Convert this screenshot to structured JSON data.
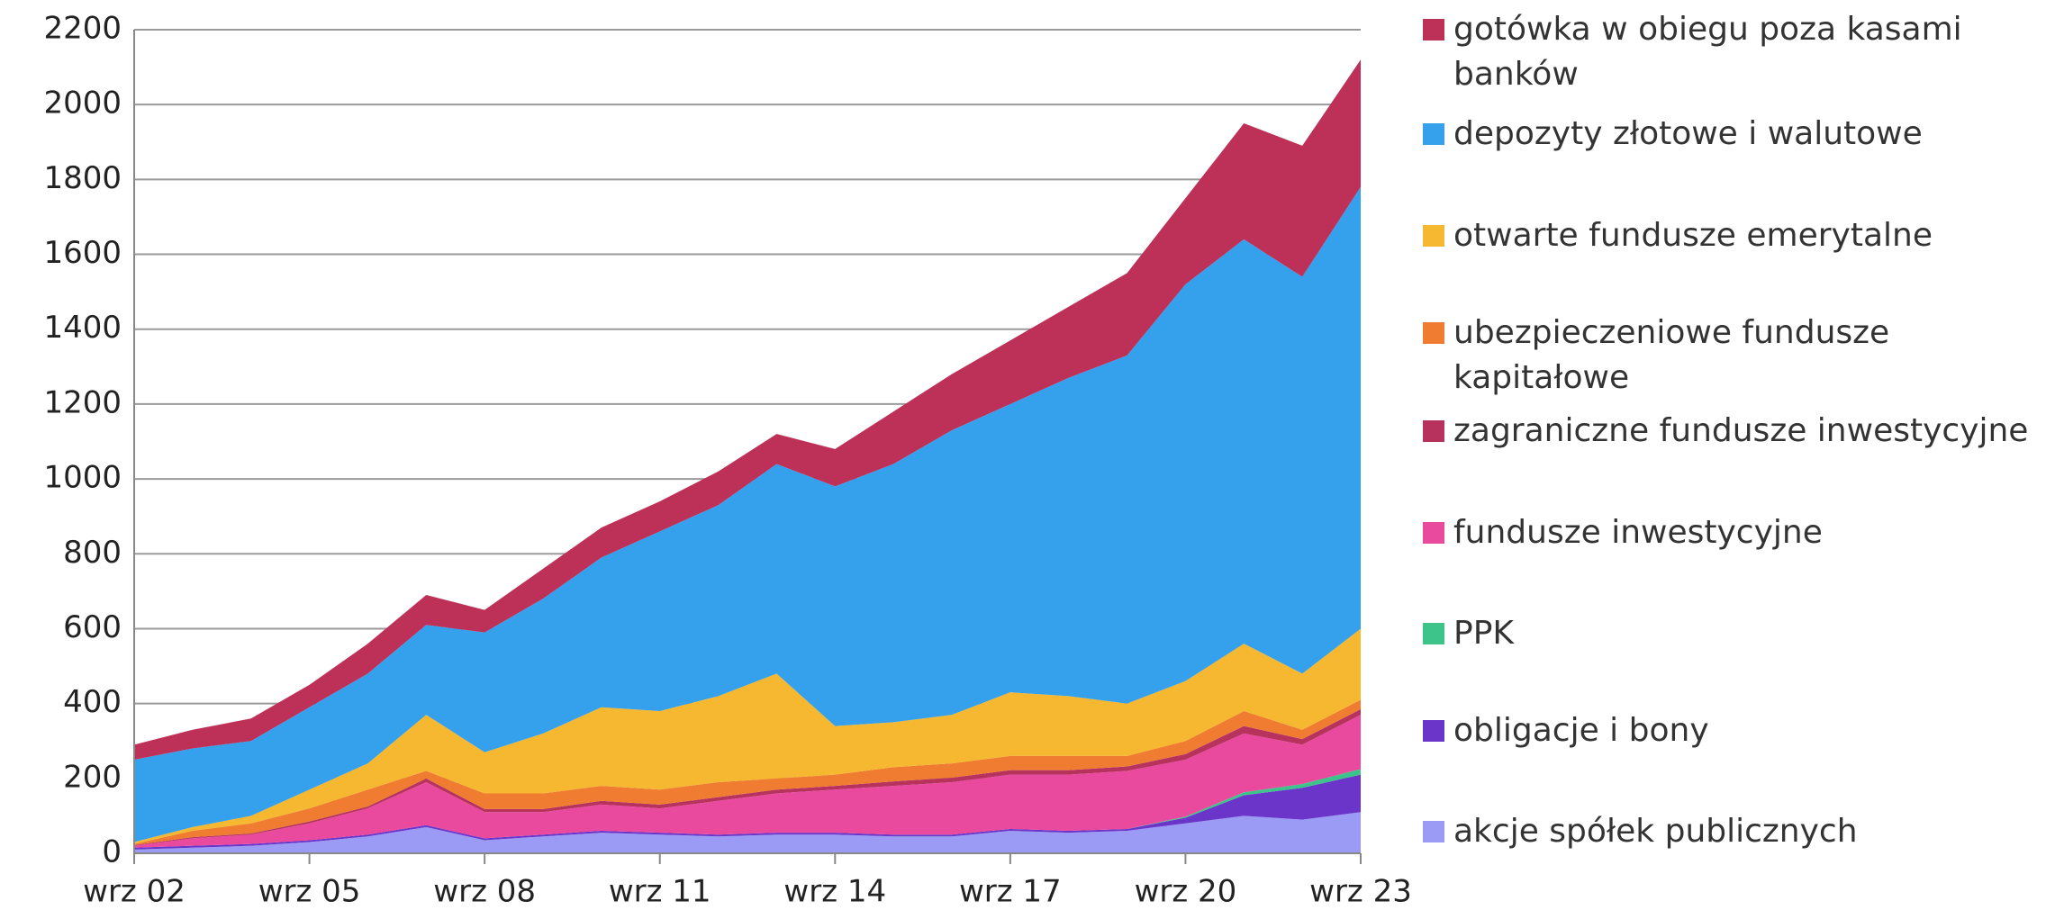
{
  "chart_data": {
    "type": "stacked_area",
    "categories": [
      "wrz 02",
      null,
      null,
      "wrz 05",
      null,
      null,
      "wrz 08",
      null,
      null,
      "wrz 11",
      null,
      null,
      "wrz 14",
      null,
      null,
      "wrz 17",
      null,
      null,
      "wrz 20",
      null,
      null,
      "wrz 23"
    ],
    "ylim": [
      0,
      2200
    ],
    "yticks": [
      0,
      200,
      400,
      600,
      800,
      1000,
      1200,
      1400,
      1600,
      1800,
      2000,
      2200
    ],
    "grid": true,
    "series": [
      {
        "name": "akcje spółek publicznych",
        "color": "#9b9bf5",
        "values": [
          10,
          15,
          20,
          30,
          45,
          70,
          35,
          45,
          55,
          50,
          45,
          50,
          50,
          45,
          45,
          60,
          55,
          60,
          80,
          100,
          90,
          110
        ]
      },
      {
        "name": "obligacje i bony",
        "color": "#6a35c8",
        "values": [
          5,
          5,
          5,
          5,
          5,
          5,
          5,
          5,
          5,
          5,
          5,
          5,
          5,
          5,
          5,
          5,
          5,
          5,
          15,
          55,
          85,
          100
        ]
      },
      {
        "name": "PPK",
        "color": "#3cc48a",
        "values": [
          0,
          0,
          0,
          0,
          0,
          0,
          0,
          0,
          0,
          0,
          0,
          0,
          0,
          0,
          0,
          0,
          0,
          0,
          3,
          8,
          10,
          15
        ]
      },
      {
        "name": "fundusze inwestycyjne",
        "color": "#ea4a9e",
        "values": [
          5,
          20,
          25,
          45,
          70,
          115,
          70,
          60,
          70,
          65,
          90,
          105,
          115,
          130,
          140,
          145,
          150,
          155,
          152,
          157,
          105,
          145
        ]
      },
      {
        "name": "zagraniczne fundusze inwestycyjne",
        "color": "#b8325e",
        "values": [
          2,
          3,
          3,
          5,
          5,
          10,
          8,
          8,
          10,
          10,
          10,
          10,
          10,
          12,
          12,
          12,
          12,
          12,
          15,
          20,
          15,
          15
        ]
      },
      {
        "name": "ubezpieczeniowe fundusze kapitałowe",
        "color": "#ef7c30",
        "values": [
          3,
          17,
          27,
          35,
          45,
          20,
          42,
          42,
          40,
          40,
          40,
          30,
          30,
          38,
          38,
          38,
          38,
          28,
          35,
          40,
          25,
          25
        ]
      },
      {
        "name": "otwarte fundusze emerytalne",
        "color": "#f5b830",
        "values": [
          5,
          10,
          20,
          50,
          70,
          150,
          110,
          160,
          210,
          210,
          230,
          280,
          130,
          120,
          130,
          170,
          160,
          140,
          160,
          180,
          150,
          190
        ]
      },
      {
        "name": "depozyty złotowe i walutowe",
        "color": "#35a0ec",
        "values": [
          220,
          210,
          200,
          220,
          240,
          240,
          320,
          360,
          400,
          480,
          510,
          560,
          640,
          690,
          760,
          770,
          850,
          930,
          1060,
          1080,
          1060,
          1180
        ]
      },
      {
        "name": "gotówka w obiegu poza kasami banków",
        "color": "#bd3058",
        "values": [
          40,
          50,
          60,
          60,
          80,
          80,
          60,
          80,
          80,
          80,
          90,
          80,
          100,
          140,
          150,
          170,
          190,
          220,
          230,
          310,
          350,
          340
        ]
      }
    ]
  }
}
